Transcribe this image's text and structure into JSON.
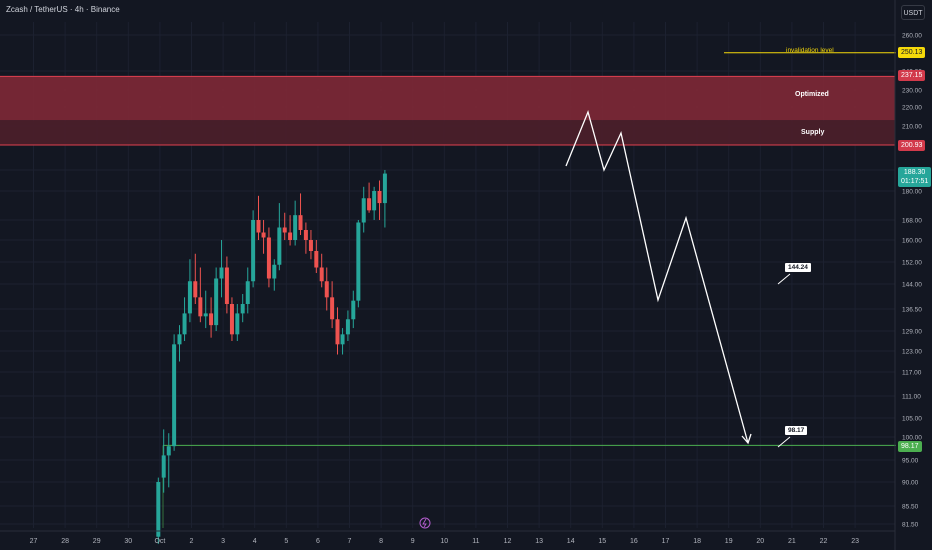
{
  "header": {
    "symbol": "Zcash / TetherUS · 4h · Binance",
    "currency_button": "USDT"
  },
  "zones": {
    "optimized_label": "Optimized",
    "supply_label": "Supply",
    "invalidation_label": "invalidation level"
  },
  "tags": {
    "zone_top": "237.15",
    "zone_bottom": "200.93",
    "invalidation": "250.13",
    "last_price": "188.30",
    "countdown": "01:17:51",
    "support": "98.17"
  },
  "callouts": {
    "target_mid": "144.24",
    "target_low": "98.17"
  },
  "colors": {
    "background": "#131722",
    "up": "#26a69a",
    "down": "#ef5350",
    "supply_zone": "#7d2836",
    "invalidation": "#f5d90a",
    "support_line": "#4caf50",
    "projection": "#ffffff"
  },
  "chart_data": {
    "type": "candlestick",
    "title": "",
    "y_axis_ticks": [
      260.0,
      240.0,
      230.0,
      220.0,
      210.0,
      190.0,
      180.0,
      168.0,
      160.0,
      152.0,
      144.0,
      136.5,
      129.0,
      123.0,
      117.0,
      111.0,
      105.0,
      100.0,
      95.0,
      90.0,
      85.5,
      81.5
    ],
    "x_axis_ticks": [
      "27",
      "28",
      "29",
      "30",
      "Oct",
      "2",
      "3",
      "4",
      "5",
      "6",
      "7",
      "8",
      "9",
      "10",
      "11",
      "12",
      "13",
      "14",
      "15",
      "16",
      "17",
      "18",
      "19",
      "20",
      "21",
      "22",
      "23"
    ],
    "zone_optimized": [
      213.0,
      237.15
    ],
    "zone_supply": [
      200.93,
      213.0
    ],
    "invalidation_level": 250.13,
    "support_level": 98.17,
    "last_price": 188.3,
    "projection_path": [
      {
        "x": "Oct 13.6",
        "y": 196
      },
      {
        "x": "Oct 14.2",
        "y": 216
      },
      {
        "x": "Oct 14.7",
        "y": 197
      },
      {
        "x": "Oct 15.1",
        "y": 207
      },
      {
        "x": "Oct 16.3",
        "y": 138
      },
      {
        "x": "Oct 17.1",
        "y": 169
      },
      {
        "x": "Oct 19.3",
        "y": 98.5
      }
    ],
    "candles_ohlc": [
      [
        0.0,
        78,
        91,
        76,
        90
      ],
      [
        0.17,
        91,
        102,
        88,
        96
      ],
      [
        0.33,
        96,
        101,
        89,
        98
      ],
      [
        0.5,
        98,
        128,
        97,
        125
      ],
      [
        0.67,
        125,
        131,
        120,
        128
      ],
      [
        0.83,
        128,
        140,
        126,
        135
      ],
      [
        1.0,
        135,
        153,
        132,
        145
      ],
      [
        1.17,
        145,
        155,
        138,
        140
      ],
      [
        1.33,
        140,
        150,
        132,
        134
      ],
      [
        1.5,
        134,
        142,
        130,
        135
      ],
      [
        1.67,
        135,
        140,
        127,
        131
      ],
      [
        1.83,
        131,
        150,
        129,
        146
      ],
      [
        2.0,
        146,
        160,
        140,
        150
      ],
      [
        2.17,
        150,
        154,
        135,
        138
      ],
      [
        2.33,
        138,
        140,
        126,
        128
      ],
      [
        2.5,
        128,
        138,
        126,
        135
      ],
      [
        2.67,
        135,
        141,
        132,
        138
      ],
      [
        2.83,
        138,
        150,
        135,
        145
      ],
      [
        3.0,
        145,
        172,
        143,
        168
      ],
      [
        3.17,
        168,
        178,
        160,
        163
      ],
      [
        3.33,
        163,
        168,
        155,
        161
      ],
      [
        3.5,
        161,
        165,
        143,
        146
      ],
      [
        3.67,
        146,
        153,
        142,
        151
      ],
      [
        3.83,
        151,
        175,
        149,
        165
      ],
      [
        4.0,
        165,
        171,
        160,
        163
      ],
      [
        4.17,
        163,
        170,
        158,
        160
      ],
      [
        4.33,
        160,
        176,
        158,
        170
      ],
      [
        4.5,
        170,
        179,
        162,
        164
      ],
      [
        4.67,
        164,
        167,
        155,
        160
      ],
      [
        4.83,
        160,
        164,
        153,
        156
      ],
      [
        5.0,
        156,
        160,
        148,
        150
      ],
      [
        5.17,
        150,
        155,
        143,
        145
      ],
      [
        5.33,
        145,
        150,
        136,
        140
      ],
      [
        5.5,
        140,
        145,
        130,
        133
      ],
      [
        5.67,
        133,
        137,
        122,
        125
      ],
      [
        5.83,
        125,
        130,
        122,
        128
      ],
      [
        6.0,
        128,
        136,
        126,
        133
      ],
      [
        6.17,
        133,
        142,
        130,
        139
      ],
      [
        6.33,
        139,
        168,
        137,
        167
      ],
      [
        6.5,
        167,
        182,
        163,
        177
      ],
      [
        6.67,
        177,
        184,
        171,
        172
      ],
      [
        6.83,
        172,
        182,
        168,
        180
      ],
      [
        7.0,
        180,
        185,
        168,
        175
      ],
      [
        7.17,
        175,
        190,
        165,
        188.3
      ]
    ]
  }
}
